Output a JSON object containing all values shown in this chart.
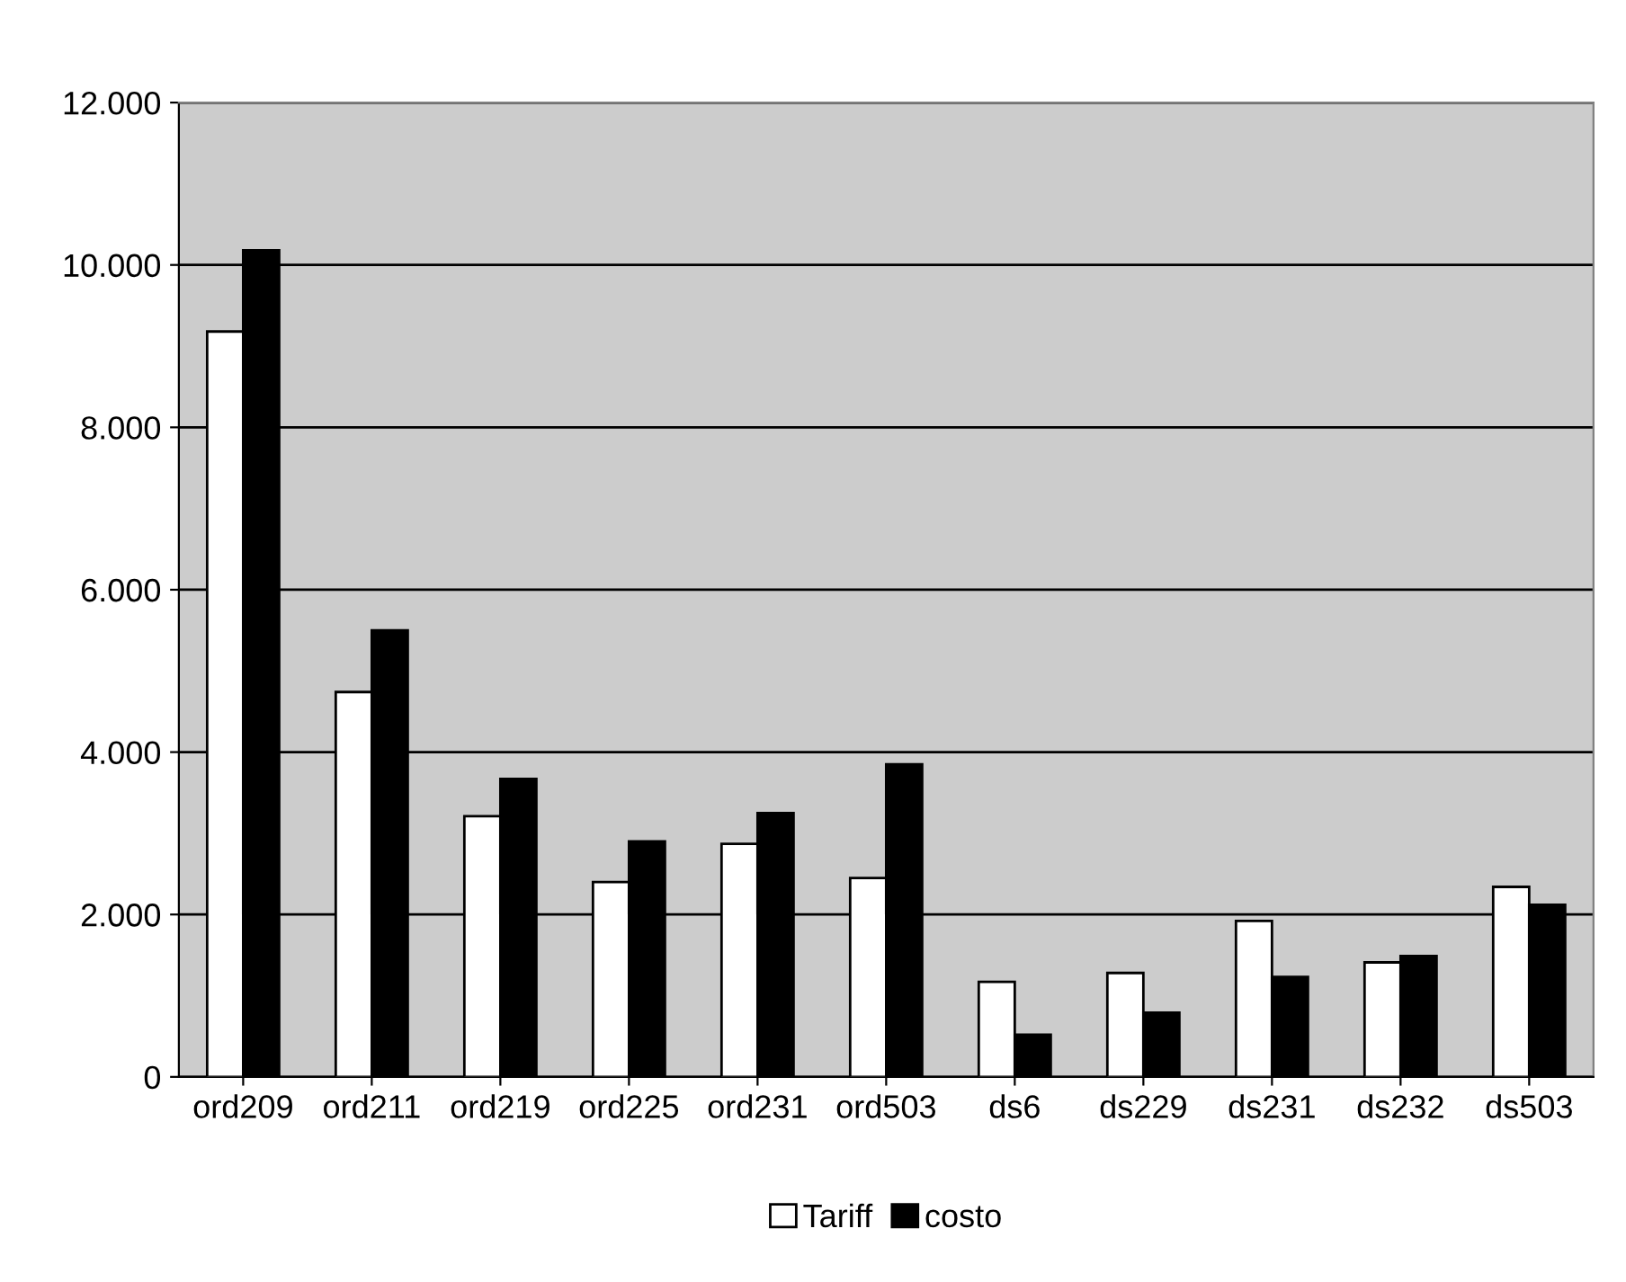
{
  "chart_data": {
    "type": "bar",
    "categories": [
      "ord209",
      "ord211",
      "ord219",
      "ord225",
      "ord231",
      "ord503",
      "ds6",
      "ds229",
      "ds231",
      "ds232",
      "ds503"
    ],
    "series": [
      {
        "name": "Tariff",
        "color": "#ffffff",
        "values": [
          9180,
          4740,
          3210,
          2400,
          2870,
          2450,
          1170,
          1280,
          1920,
          1410,
          2340
        ]
      },
      {
        "name": "costo",
        "color": "#000000",
        "values": [
          10180,
          5500,
          3670,
          2900,
          3250,
          3850,
          520,
          790,
          1230,
          1490,
          2120
        ]
      }
    ],
    "ylim": [
      0,
      12000
    ],
    "yticks": [
      0,
      {
        "value": 2000,
        "label": "2.000"
      },
      {
        "value": 4000,
        "label": "4.000"
      },
      {
        "value": 6000,
        "label": "6.000"
      },
      {
        "value": 8000,
        "label": "8.000"
      },
      {
        "value": 10000,
        "label": "10.000"
      },
      {
        "value": 12000,
        "label": "12.000"
      }
    ],
    "grid": "y",
    "legend": "bottom"
  }
}
